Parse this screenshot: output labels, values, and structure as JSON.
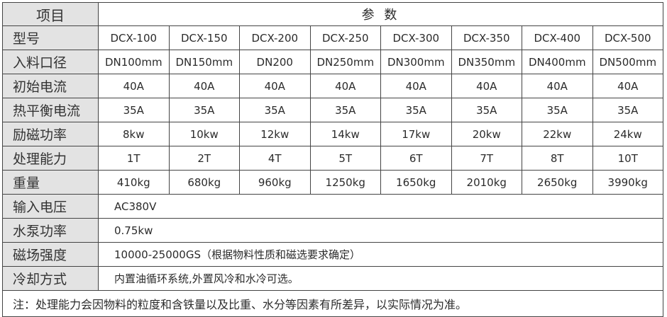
{
  "header": {
    "item_label": "项目",
    "params_label": "参 数"
  },
  "models": {
    "label": "型号",
    "values": [
      "DCX-100",
      "DCX-150",
      "DCX-200",
      "DCX-250",
      "DCX-300",
      "DCX-350",
      "DCX-400",
      "DCX-500"
    ]
  },
  "rows": [
    {
      "label": "入料口径",
      "values": [
        "DN100mm",
        "DN150mm",
        "DN200",
        "DN250mm",
        "DN300mm",
        "DN350mm",
        "DN400mm",
        "DN500mm"
      ]
    },
    {
      "label": "初始电流",
      "values": [
        "40A",
        "40A",
        "40A",
        "40A",
        "40A",
        "40A",
        "40A",
        "40A"
      ]
    },
    {
      "label": "热平衡电流",
      "values": [
        "35A",
        "35A",
        "35A",
        "35A",
        "35A",
        "35A",
        "35A",
        "35A"
      ]
    },
    {
      "label": "励磁功率",
      "values": [
        "8kw",
        "10kw",
        "12kw",
        "14kw",
        "17kw",
        "20kw",
        "22kw",
        "24kw"
      ]
    },
    {
      "label": "处理能力",
      "values": [
        "1T",
        "2T",
        "4T",
        "5T",
        "6T",
        "7T",
        "8T",
        "10T"
      ]
    },
    {
      "label": "重量",
      "values": [
        "410kg",
        "680kg",
        "960kg",
        "1250kg",
        "1650kg",
        "2010kg",
        "2650kg",
        "3990kg"
      ]
    }
  ],
  "wide_rows": [
    {
      "label": "输入电压",
      "value": "AC380V"
    },
    {
      "label": "水泵功率",
      "value": "0.75kw"
    },
    {
      "label": "磁场强度",
      "value": "10000-25000GS（根据物料性质和磁选要求确定）"
    },
    {
      "label": "冷却方式",
      "value": "内置油循环系统,外置风冷和水冷可选。"
    }
  ],
  "note": "注：处理能力会因物料的粒度和含铁量以及比重、水分等因素有所差异，以实际情况为准。"
}
